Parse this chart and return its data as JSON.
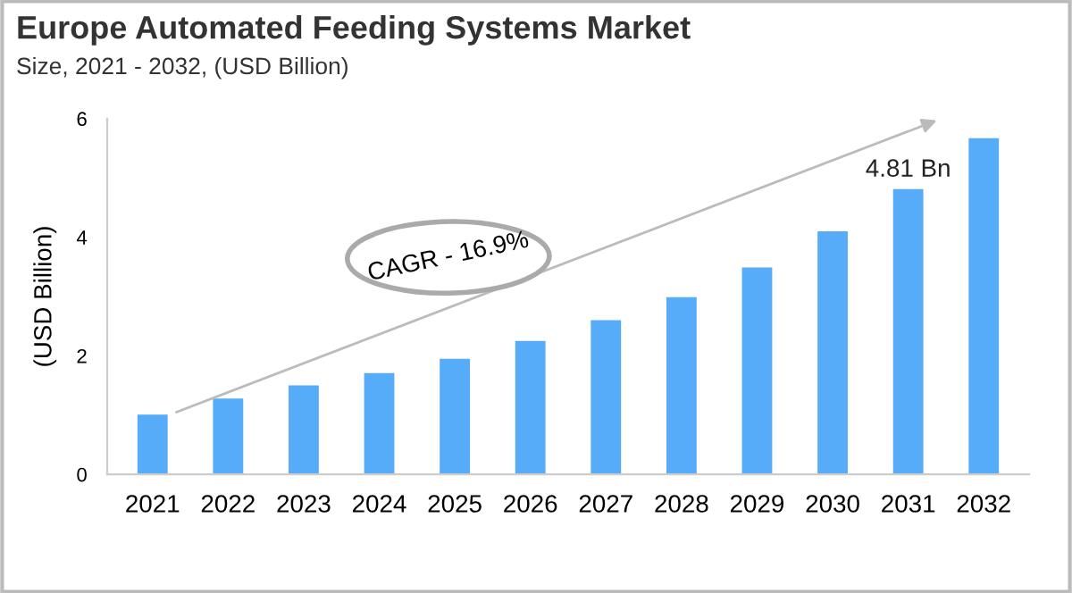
{
  "chart_data": {
    "type": "bar",
    "title": "Europe Automated Feeding Systems Market",
    "subtitle": "Size, 2021 - 2032, (USD Billion)",
    "ylabel": "(USD Billion)",
    "categories": [
      "2021",
      "2022",
      "2023",
      "2024",
      "2025",
      "2026",
      "2027",
      "2028",
      "2029",
      "2030",
      "2031",
      "2032"
    ],
    "values": [
      1.01,
      1.28,
      1.5,
      1.71,
      1.95,
      2.25,
      2.6,
      2.99,
      3.49,
      4.1,
      4.81,
      5.67
    ],
    "value_labels": [
      null,
      null,
      null,
      null,
      null,
      null,
      null,
      null,
      null,
      null,
      "4.81 Bn",
      null
    ],
    "color": "#56acf8",
    "ylim": [
      0,
      6
    ],
    "yticks": [
      0,
      2,
      4,
      6
    ],
    "grid": false,
    "legend": false,
    "annotations": [
      "CAGR - 16.9%"
    ]
  }
}
